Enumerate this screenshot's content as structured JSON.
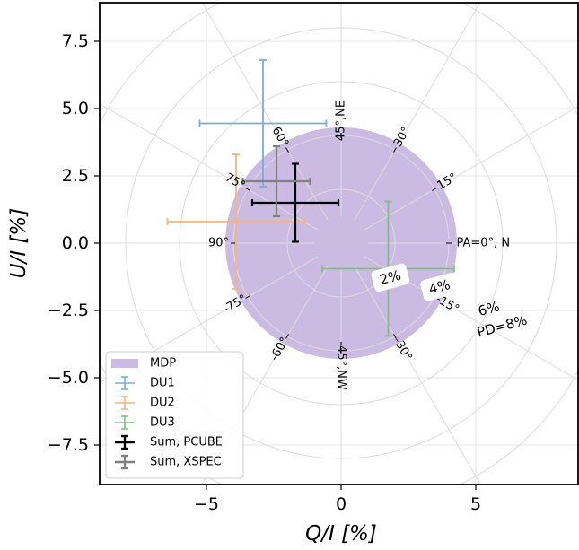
{
  "chart_data": {
    "type": "scatter",
    "title": "",
    "xlabel": "Q/I [%]",
    "ylabel": "U/I [%]",
    "xlim": [
      -8.9,
      8.9
    ],
    "ylim": [
      -9.0,
      9.0
    ],
    "xticks": [
      -5,
      0,
      5
    ],
    "xtick_labels": [
      "−5",
      "0",
      "5"
    ],
    "yticks": [
      7.5,
      5.0,
      2.5,
      0.0,
      -2.5,
      -5.0,
      -7.5
    ],
    "ytick_labels": [
      "7.5",
      "5.0",
      "2.5",
      "0.0",
      "−2.5",
      "−5.0",
      "−7.5"
    ],
    "grid": "polar",
    "polar_rings": [
      {
        "radius": 2,
        "label": "2%",
        "boxed": true
      },
      {
        "radius": 4,
        "label": "4%",
        "boxed": true
      },
      {
        "radius": 6,
        "label": "6%",
        "boxed": false
      },
      {
        "radius": 8,
        "label": "PD=8%",
        "boxed": false
      }
    ],
    "polar_angle_labels": [
      {
        "angle_deg": 0,
        "label": "PA=0°, N"
      },
      {
        "angle_deg": 30,
        "label": "15°"
      },
      {
        "angle_deg": 60,
        "label": "30°"
      },
      {
        "angle_deg": 90,
        "label": "45°,NE"
      },
      {
        "angle_deg": 120,
        "label": "60°"
      },
      {
        "angle_deg": 150,
        "label": "75°"
      },
      {
        "angle_deg": 180,
        "label": "90°"
      },
      {
        "angle_deg": 210,
        "label": "-75°"
      },
      {
        "angle_deg": 240,
        "label": "-60°"
      },
      {
        "angle_deg": 270,
        "label": "-45°,NW"
      },
      {
        "angle_deg": 300,
        "label": "-30°"
      },
      {
        "angle_deg": 330,
        "label": "-15°"
      }
    ],
    "mdp": {
      "name": "MDP",
      "center": [
        0,
        0
      ],
      "radius": 4.3,
      "color": "#cbbbe3"
    },
    "series": [
      {
        "name": "DU1",
        "color": "#7aaed6",
        "q": -2.9,
        "u": 4.45,
        "q_err": 2.35,
        "u_err": 2.35
      },
      {
        "name": "DU2",
        "color": "#f8b37b",
        "q": -3.9,
        "u": 0.8,
        "q_err": 2.55,
        "u_err": 2.5
      },
      {
        "name": "DU3",
        "color": "#7fbf85",
        "q": 1.75,
        "u": -0.95,
        "q_err": 2.45,
        "u_err": 2.5
      },
      {
        "name": "Sum, PCUBE",
        "color": "#000000",
        "q": -1.7,
        "u": 1.5,
        "q_err": 1.6,
        "u_err": 1.45
      },
      {
        "name": "Sum, XSPEC",
        "color": "#808080",
        "q": -2.4,
        "u": 2.3,
        "q_err": 1.25,
        "u_err": 1.3
      }
    ],
    "legend": {
      "location": "lower-left",
      "entries": [
        "MDP",
        "DU1",
        "DU2",
        "DU3",
        "Sum, PCUBE",
        "Sum, XSPEC"
      ]
    }
  }
}
